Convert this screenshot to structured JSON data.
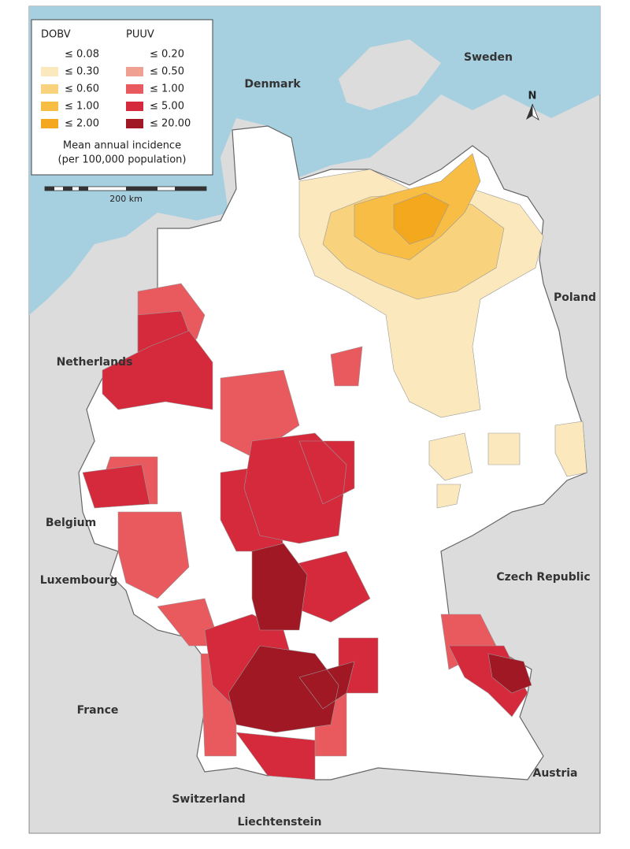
{
  "legend": {
    "headers": [
      "DOBV",
      "PUUV"
    ],
    "dobv": [
      {
        "label": "≤ 0.08",
        "color": "#ffffff"
      },
      {
        "label": "≤ 0.30",
        "color": "#fbe8bd"
      },
      {
        "label": "≤ 0.60",
        "color": "#f9d27e"
      },
      {
        "label": "≤ 1.00",
        "color": "#f7bd45"
      },
      {
        "label": "≤ 2.00",
        "color": "#f4a81d"
      }
    ],
    "puuv": [
      {
        "label": "≤ 0.20",
        "color": "#ffffff"
      },
      {
        "label": "≤ 0.50",
        "color": "#f0a090"
      },
      {
        "label": "≤ 1.00",
        "color": "#e85a5e"
      },
      {
        "label": "≤ 5.00",
        "color": "#d42a3c"
      },
      {
        "label": "≤ 20.00",
        "color": "#a01824"
      }
    ],
    "caption": [
      "Mean annual incidence",
      "(per 100,000 population)"
    ]
  },
  "scale_bar": {
    "label": "200 km"
  },
  "north_arrow": {
    "label": "N"
  },
  "countries": [
    "Sweden",
    "Denmark",
    "Poland",
    "Netherlands",
    "Belgium",
    "Luxembourg",
    "Czech Republic",
    "France",
    "Austria",
    "Switzerland",
    "Liechtenstein"
  ]
}
